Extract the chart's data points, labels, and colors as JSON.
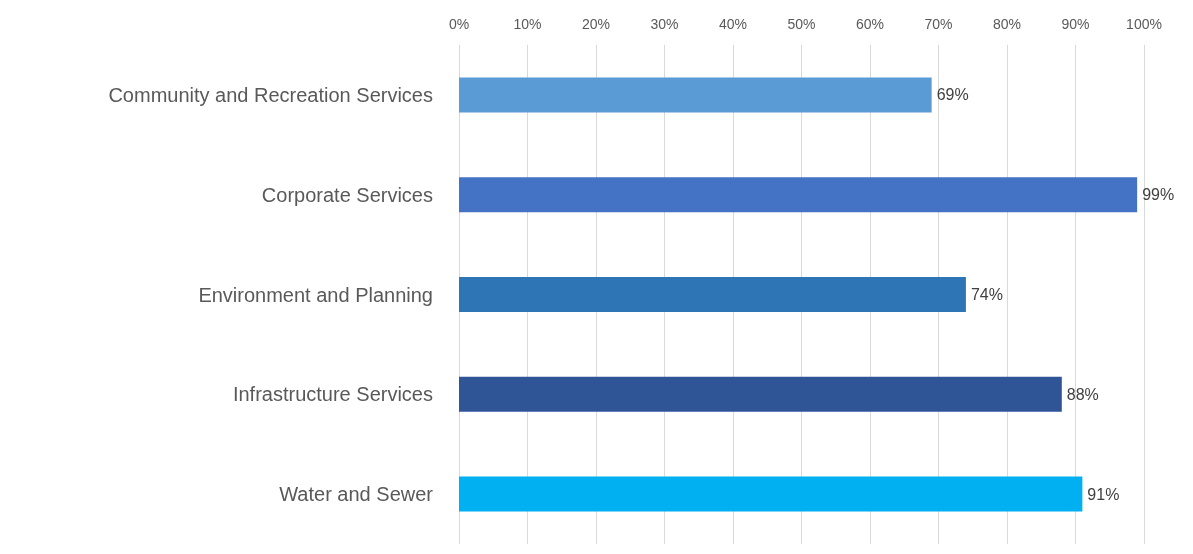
{
  "chart_data": {
    "type": "bar",
    "orientation": "horizontal",
    "categories": [
      "Community and Recreation Services",
      "Corporate Services",
      "Environment and Planning",
      "Infrastructure Services",
      "Water and Sewer"
    ],
    "values": [
      69,
      99,
      74,
      88,
      91
    ],
    "colors": [
      "#5b9bd5",
      "#4472c4",
      "#2e75b6",
      "#2f5597",
      "#00b0f0"
    ],
    "value_labels": [
      "69%",
      "99%",
      "74%",
      "88%",
      "91%"
    ],
    "xlim": [
      0,
      100
    ],
    "xticks": [
      {
        "value": 0,
        "label": "0%"
      },
      {
        "value": 10,
        "label": "10%"
      },
      {
        "value": 20,
        "label": "20%"
      },
      {
        "value": 30,
        "label": "30%"
      },
      {
        "value": 40,
        "label": "40%"
      },
      {
        "value": 50,
        "label": "50%"
      },
      {
        "value": 60,
        "label": "60%"
      },
      {
        "value": 70,
        "label": "70%"
      },
      {
        "value": 80,
        "label": "80%"
      },
      {
        "value": 90,
        "label": "90%"
      },
      {
        "value": 100,
        "label": "100%"
      }
    ],
    "grid": "x"
  }
}
